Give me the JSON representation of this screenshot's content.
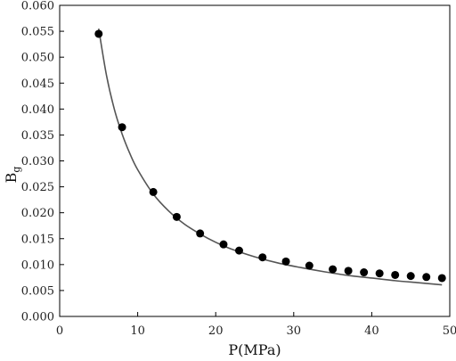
{
  "chart_data": {
    "type": "scatter",
    "xlabel": "P(MPa)",
    "ylabel": "B",
    "ylabel_subscript": "g",
    "xlim": [
      0,
      50
    ],
    "ylim": [
      0,
      0.06
    ],
    "xticks": [
      0,
      10,
      20,
      30,
      40,
      50
    ],
    "xtick_labels": [
      "0",
      "10",
      "20",
      "30",
      "40",
      "50"
    ],
    "yticks": [
      0,
      0.005,
      0.01,
      0.015,
      0.02,
      0.025,
      0.03,
      0.035,
      0.04,
      0.045,
      0.05,
      0.055,
      0.06
    ],
    "ytick_labels": [
      "0.000",
      "0.005",
      "0.010",
      "0.015",
      "0.020",
      "0.025",
      "0.030",
      "0.035",
      "0.040",
      "0.045",
      "0.050",
      "0.055",
      "0.060"
    ],
    "grid": false,
    "series": [
      {
        "type": "scatter",
        "x": [
          5,
          8,
          12,
          15,
          18,
          21,
          23,
          26,
          29,
          32,
          35,
          37,
          39,
          41,
          43,
          45,
          47,
          49
        ],
        "y": [
          0.0545,
          0.0365,
          0.024,
          0.0192,
          0.016,
          0.0139,
          0.0127,
          0.0114,
          0.0106,
          0.0098,
          0.0091,
          0.0088,
          0.0085,
          0.0083,
          0.008,
          0.0078,
          0.0076,
          0.0074
        ]
      },
      {
        "type": "line",
        "x": [
          5,
          6,
          7,
          8,
          9,
          10,
          12,
          14,
          16,
          18,
          20,
          22,
          25,
          28,
          31,
          34,
          37,
          40,
          43,
          46,
          49
        ],
        "y": [
          0.0555,
          0.0465,
          0.04,
          0.0352,
          0.0314,
          0.0283,
          0.0236,
          0.0203,
          0.0178,
          0.0159,
          0.0143,
          0.013,
          0.0115,
          0.0103,
          0.0094,
          0.0086,
          0.0079,
          0.0074,
          0.0069,
          0.0065,
          0.0061
        ]
      }
    ]
  }
}
